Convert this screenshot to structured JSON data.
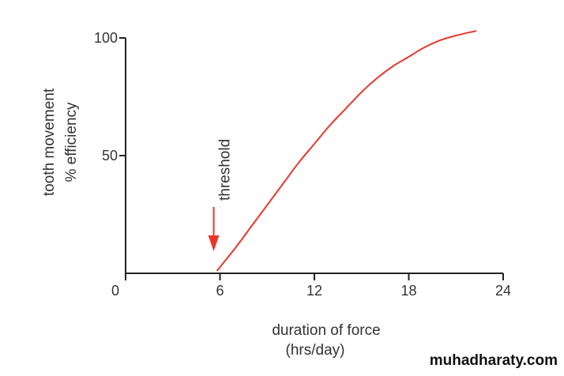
{
  "chart_data": {
    "type": "line",
    "xlabel_line1": "duration of force",
    "xlabel_line2": "(hrs/day)",
    "ylabel_line1": "tooth movement",
    "ylabel_line2": "% efficiency",
    "xlim": [
      0,
      24
    ],
    "ylim": [
      0,
      100
    ],
    "x_ticks": [
      0,
      6,
      12,
      18,
      24
    ],
    "y_ticks": [
      50,
      100
    ],
    "series": [
      {
        "color": "#e8382a",
        "x": [
          5.8,
          7,
          8,
          9,
          10,
          11,
          12,
          13,
          14,
          15,
          16,
          17,
          18,
          19,
          20,
          21,
          22.3
        ],
        "y": [
          1,
          11,
          20,
          29,
          38,
          47,
          55,
          63,
          70,
          77,
          83,
          88,
          92,
          96,
          99,
          101,
          103
        ]
      }
    ],
    "annotation": {
      "text": "threshold",
      "x": 5.6,
      "arrow_color": "#e8382a"
    },
    "grid": false
  },
  "watermark": "muhadharaty.com"
}
